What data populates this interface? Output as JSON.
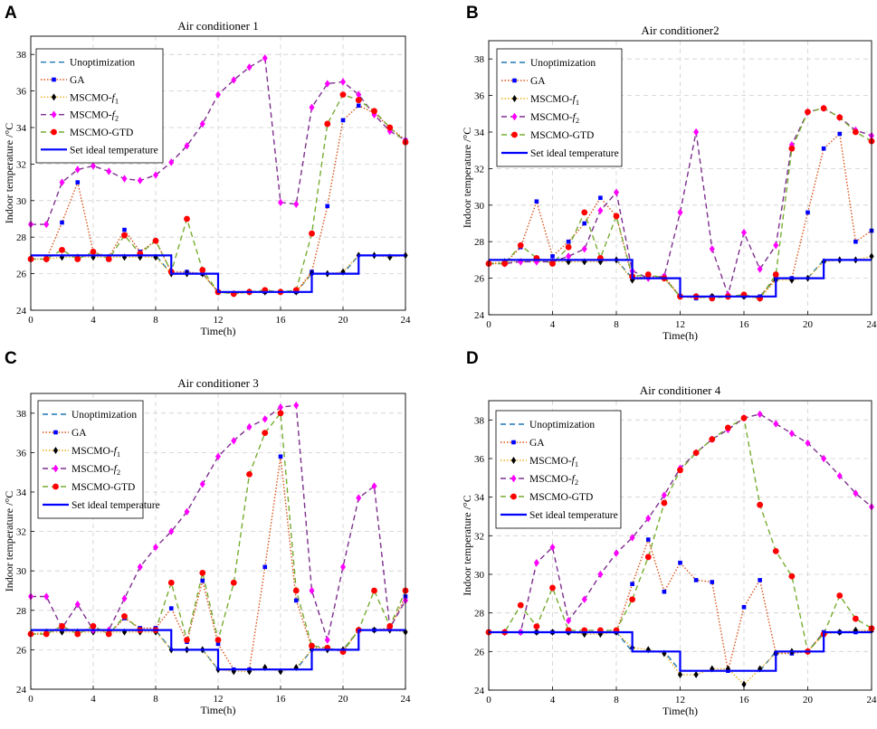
{
  "chart_data": [
    {
      "type": "line",
      "panel_label": "A",
      "title": "Air conditioner 1",
      "xlabel": "Time(h)",
      "ylabel": "Indoor temperature /°C",
      "xlim": [
        0,
        24
      ],
      "ylim": [
        24,
        39
      ],
      "xticks": [
        "0",
        "4",
        "8",
        "12",
        "16",
        "20",
        "24"
      ],
      "yticks": [
        "24",
        "26",
        "28",
        "30",
        "32",
        "34",
        "36",
        "38"
      ],
      "grid": true,
      "legend_position": "top-left",
      "x": [
        0,
        1,
        2,
        3,
        4,
        5,
        6,
        7,
        8,
        9,
        10,
        11,
        12,
        13,
        14,
        15,
        16,
        17,
        18,
        19,
        20,
        21,
        22,
        23,
        24
      ],
      "series": [
        {
          "key": "unopt",
          "name": "Unoptimization",
          "sub": "",
          "color": "#1f77b4",
          "values": [
            27,
            27,
            27,
            27,
            27,
            27,
            27,
            27,
            27,
            26,
            26,
            26,
            25,
            25,
            25,
            25,
            25,
            25,
            26,
            26,
            26,
            27,
            27,
            27,
            27
          ]
        },
        {
          "key": "ga",
          "name": "GA",
          "sub": "",
          "color": "#d95319",
          "values": [
            26.8,
            26.8,
            28.8,
            31,
            27.2,
            26.9,
            28.4,
            27.2,
            27.8,
            26.1,
            26.1,
            26,
            25,
            24.9,
            25,
            25,
            25,
            25,
            26.1,
            29.7,
            34.4,
            35.2,
            34.8,
            34,
            33.3
          ]
        },
        {
          "key": "f1",
          "name": "MSCMO-f",
          "sub": "1",
          "color": "#edb120",
          "values": [
            26.8,
            26.8,
            26.9,
            26.9,
            26.9,
            26.9,
            26.9,
            26.9,
            26.9,
            26,
            26,
            26,
            25,
            24.9,
            25,
            25,
            25,
            25,
            26,
            26,
            26.1,
            27,
            27,
            26.9,
            27
          ]
        },
        {
          "key": "f2",
          "name": "MSCMO-f",
          "sub": "2",
          "color": "#7e2f8e",
          "values": [
            28.7,
            28.7,
            31,
            31.7,
            31.9,
            31.6,
            31.2,
            31.1,
            31.4,
            32.1,
            33,
            34.2,
            35.8,
            36.6,
            37.3,
            37.8,
            29.9,
            29.8,
            35.1,
            36.4,
            36.5,
            35.8,
            34.7,
            33.8,
            33.3
          ]
        },
        {
          "key": "gtd",
          "name": "MSCMO-GTD",
          "sub": "",
          "color": "#77ac30",
          "values": [
            26.8,
            26.8,
            27.3,
            26.8,
            27.2,
            26.8,
            28.1,
            27.1,
            27.8,
            26.1,
            29,
            26.2,
            25,
            24.9,
            25,
            25.1,
            25,
            25.1,
            28.2,
            34.2,
            35.8,
            35.5,
            34.9,
            34,
            33.2
          ]
        }
      ],
      "ideal": {
        "name": "Set ideal temperature",
        "color": "#0000ff",
        "steps": [
          [
            0,
            9,
            27
          ],
          [
            9,
            12,
            26
          ],
          [
            12,
            18,
            25
          ],
          [
            18,
            21,
            26
          ],
          [
            21,
            24,
            27
          ]
        ]
      }
    },
    {
      "type": "line",
      "panel_label": "B",
      "title": "Air conditioner2",
      "xlabel": "Time(h)",
      "ylabel": "Indoor temperature /°C",
      "xlim": [
        0,
        24
      ],
      "ylim": [
        24,
        39
      ],
      "xticks": [
        "0",
        "4",
        "8",
        "12",
        "16",
        "20",
        "24"
      ],
      "yticks": [
        "24",
        "26",
        "28",
        "30",
        "32",
        "34",
        "36",
        "38"
      ],
      "grid": true,
      "legend_position": "top-left",
      "x": [
        0,
        1,
        2,
        3,
        4,
        5,
        6,
        7,
        8,
        9,
        10,
        11,
        12,
        13,
        14,
        15,
        16,
        17,
        18,
        19,
        20,
        21,
        22,
        23,
        24
      ],
      "series": [
        {
          "key": "unopt",
          "name": "Unoptimization",
          "sub": "",
          "color": "#1f77b4",
          "values": [
            27,
            27,
            27,
            27,
            27,
            27,
            27,
            27,
            27,
            26,
            26,
            26,
            25,
            25,
            25,
            25,
            25,
            25,
            26,
            26,
            26,
            27,
            27,
            27,
            27
          ]
        },
        {
          "key": "ga",
          "name": "GA",
          "sub": "",
          "color": "#d95319",
          "values": [
            26.8,
            26.8,
            27.7,
            30.2,
            27.2,
            28,
            29,
            30.4,
            29.4,
            26,
            26.1,
            26.1,
            25,
            24.9,
            25,
            25,
            25,
            25,
            26,
            26,
            29.6,
            33.1,
            33.9,
            28,
            28.6
          ]
        },
        {
          "key": "f1",
          "name": "MSCMO-f",
          "sub": "1",
          "color": "#edb120",
          "values": [
            26.8,
            26.9,
            26.9,
            26.9,
            26.9,
            26.9,
            26.9,
            26.9,
            27,
            25.9,
            26,
            26,
            25,
            25,
            25,
            25,
            25,
            24.9,
            25.9,
            25.9,
            26,
            26.9,
            27,
            27,
            27.2
          ]
        },
        {
          "key": "f2",
          "name": "MSCMO-f",
          "sub": "2",
          "color": "#7e2f8e",
          "values": [
            26.8,
            26.8,
            26.9,
            26.9,
            26.9,
            27.2,
            27.6,
            29.7,
            30.7,
            26.4,
            26,
            26.1,
            29.6,
            34,
            27.6,
            25.1,
            28.5,
            26.5,
            27.8,
            33.3,
            35.1,
            35.3,
            34.8,
            34.1,
            33.8
          ]
        },
        {
          "key": "gtd",
          "name": "MSCMO-GTD",
          "sub": "",
          "color": "#77ac30",
          "values": [
            26.8,
            26.8,
            27.8,
            27.1,
            26.8,
            27.7,
            29.6,
            27.1,
            29.4,
            26.1,
            26.2,
            26,
            25,
            25,
            24.9,
            25,
            25.1,
            24.9,
            26.2,
            33.1,
            35.1,
            35.3,
            34.8,
            34,
            33.5
          ]
        }
      ],
      "ideal": {
        "name": "Set ideal temperature",
        "color": "#0000ff",
        "steps": [
          [
            0,
            9,
            27
          ],
          [
            9,
            12,
            26
          ],
          [
            12,
            18,
            25
          ],
          [
            18,
            21,
            26
          ],
          [
            21,
            24,
            27
          ]
        ]
      }
    },
    {
      "type": "line",
      "panel_label": "C",
      "title": "Air conditioner 3",
      "xlabel": "Time(h)",
      "ylabel": "Indoor temperature /°C",
      "xlim": [
        0,
        24
      ],
      "ylim": [
        24,
        39
      ],
      "xticks": [
        "0",
        "4",
        "8",
        "12",
        "16",
        "20",
        "24"
      ],
      "yticks": [
        "24",
        "26",
        "28",
        "30",
        "32",
        "34",
        "36",
        "38"
      ],
      "grid": true,
      "legend_position": "top-left",
      "x": [
        0,
        1,
        2,
        3,
        4,
        5,
        6,
        7,
        8,
        9,
        10,
        11,
        12,
        13,
        14,
        15,
        16,
        17,
        18,
        19,
        20,
        21,
        22,
        23,
        24
      ],
      "series": [
        {
          "key": "unopt",
          "name": "Unoptimization",
          "sub": "",
          "color": "#1f77b4",
          "values": [
            27,
            27,
            27,
            27,
            27,
            27,
            27,
            27,
            27,
            26,
            26,
            26,
            25,
            25,
            25,
            25,
            25,
            25,
            26,
            26,
            26,
            27,
            27,
            27,
            27
          ]
        },
        {
          "key": "ga",
          "name": "GA",
          "sub": "",
          "color": "#d95319",
          "values": [
            26.8,
            26.8,
            27.2,
            26.8,
            27.2,
            26.8,
            27.6,
            27.1,
            27.1,
            28.1,
            26.4,
            29.5,
            26.3,
            25,
            25,
            30.2,
            35.8,
            28.5,
            26.1,
            26.1,
            25.9,
            27,
            27,
            27.1,
            28.7
          ]
        },
        {
          "key": "f1",
          "name": "MSCMO-f",
          "sub": "1",
          "color": "#edb120",
          "values": [
            26.8,
            26.9,
            26.9,
            26.9,
            26.9,
            26.9,
            26.9,
            26.9,
            26.9,
            26,
            26,
            26,
            25,
            24.9,
            24.9,
            25.1,
            24.9,
            25.1,
            26,
            26,
            26,
            27,
            27,
            27,
            26.9
          ]
        },
        {
          "key": "f2",
          "name": "MSCMO-f",
          "sub": "2",
          "color": "#7e2f8e",
          "values": [
            28.7,
            28.7,
            27.1,
            28.3,
            27,
            27,
            28.6,
            30.2,
            31.2,
            32,
            33,
            34.4,
            35.8,
            36.6,
            37.3,
            37.7,
            38.3,
            38.4,
            29,
            26.5,
            30.2,
            33.7,
            34.3,
            27.1,
            28.5
          ]
        },
        {
          "key": "gtd",
          "name": "MSCMO-GTD",
          "sub": "",
          "color": "#77ac30",
          "values": [
            26.8,
            26.8,
            27.2,
            26.8,
            27.2,
            26.8,
            27.7,
            27,
            27,
            29.4,
            26.5,
            29.9,
            26.5,
            29.4,
            34.9,
            37,
            38,
            29,
            26.2,
            26.1,
            25.9,
            27,
            29,
            27.2,
            29
          ]
        }
      ],
      "ideal": {
        "name": "Set ideal temperature",
        "color": "#0000ff",
        "steps": [
          [
            0,
            9,
            27
          ],
          [
            9,
            12,
            26
          ],
          [
            12,
            18,
            25
          ],
          [
            18,
            21,
            26
          ],
          [
            21,
            24,
            27
          ]
        ]
      }
    },
    {
      "type": "line",
      "panel_label": "D",
      "title": "Air conditioner 4",
      "xlabel": "Time(h)",
      "ylabel": "Indoor temperature /°C",
      "xlim": [
        0,
        24
      ],
      "ylim": [
        24,
        39
      ],
      "xticks": [
        "0",
        "4",
        "8",
        "12",
        "16",
        "20",
        "24"
      ],
      "yticks": [
        "24",
        "26",
        "28",
        "30",
        "32",
        "34",
        "36",
        "38"
      ],
      "grid": true,
      "legend_position": "top-left",
      "x": [
        0,
        1,
        2,
        3,
        4,
        5,
        6,
        7,
        8,
        9,
        10,
        11,
        12,
        13,
        14,
        15,
        16,
        17,
        18,
        19,
        20,
        21,
        22,
        23,
        24
      ],
      "series": [
        {
          "key": "unopt",
          "name": "Unoptimization",
          "sub": "",
          "color": "#1f77b4",
          "values": [
            27,
            27,
            27,
            27,
            27,
            27,
            27,
            27,
            27,
            26,
            26,
            26,
            25,
            25,
            25,
            25,
            25,
            25,
            26,
            26,
            26,
            27,
            27,
            27,
            27
          ]
        },
        {
          "key": "ga",
          "name": "GA",
          "sub": "",
          "color": "#d95319",
          "values": [
            27,
            27,
            27,
            27,
            27,
            27,
            27,
            27,
            27,
            29.5,
            31.8,
            29.1,
            30.6,
            29.7,
            29.6,
            25,
            28.3,
            29.7,
            25.9,
            25.9,
            26,
            27,
            27,
            27,
            27.1
          ]
        },
        {
          "key": "f1",
          "name": "MSCMO-f",
          "sub": "1",
          "color": "#edb120",
          "values": [
            27,
            27,
            27,
            27,
            27,
            27,
            26.9,
            26.9,
            27,
            26.2,
            26.1,
            25.9,
            24.8,
            24.8,
            25.1,
            25.1,
            24.3,
            25.1,
            25.9,
            26,
            26,
            26.9,
            27,
            27.1,
            27.1
          ]
        },
        {
          "key": "f2",
          "name": "MSCMO-f",
          "sub": "2",
          "color": "#7e2f8e",
          "values": [
            27,
            27,
            27,
            30.6,
            31.4,
            27.6,
            28.7,
            30,
            31.1,
            31.9,
            32.9,
            34.1,
            35.5,
            36.3,
            37,
            37.5,
            38.1,
            38.3,
            37.8,
            37.3,
            36.8,
            36,
            35.1,
            34.2,
            33.5
          ]
        },
        {
          "key": "gtd",
          "name": "MSCMO-GTD",
          "sub": "",
          "color": "#77ac30",
          "values": [
            27,
            27,
            28.4,
            27.3,
            29.3,
            27.1,
            27.1,
            27.1,
            27.1,
            28.7,
            30.9,
            33.7,
            35.4,
            36.3,
            37,
            37.6,
            38.1,
            33.6,
            31.2,
            29.9,
            26,
            26.9,
            28.9,
            27.7,
            27.2
          ]
        }
      ],
      "ideal": {
        "name": "Set ideal temperature",
        "color": "#0000ff",
        "steps": [
          [
            0,
            9,
            27
          ],
          [
            9,
            12,
            26
          ],
          [
            12,
            18,
            25
          ],
          [
            18,
            21,
            26
          ],
          [
            21,
            24,
            27
          ]
        ]
      }
    }
  ]
}
